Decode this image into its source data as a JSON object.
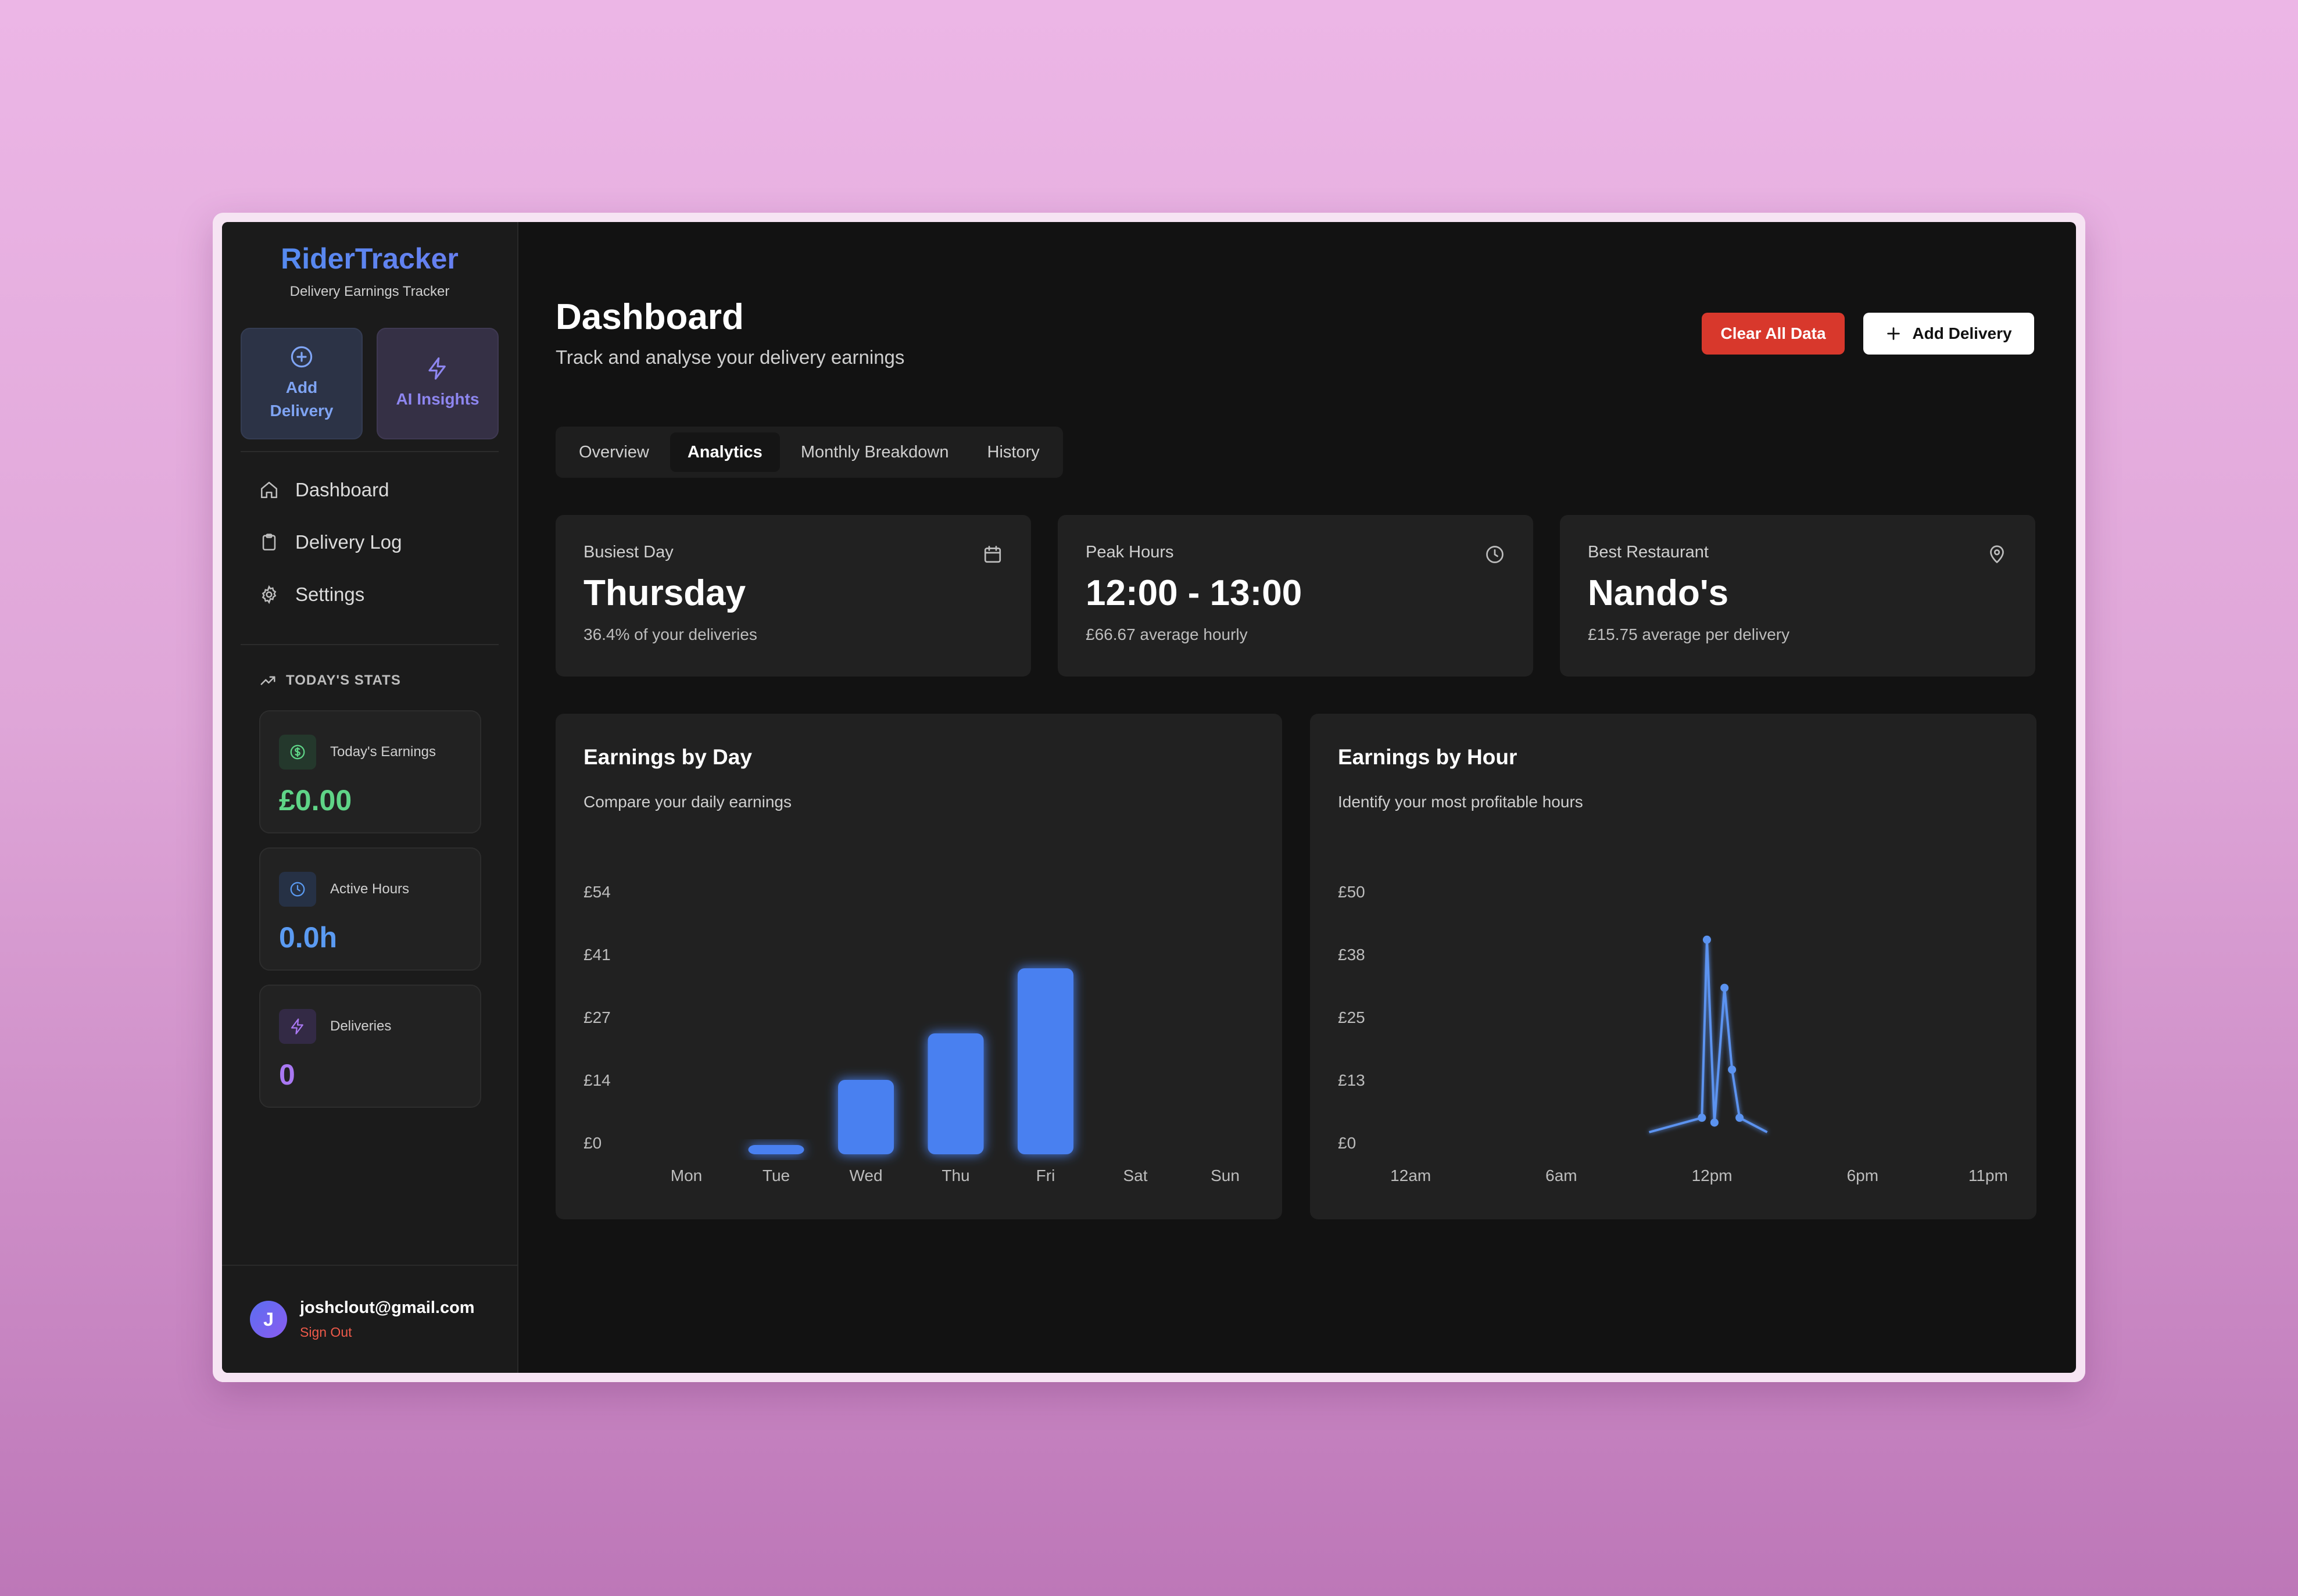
{
  "brand": {
    "title": "RiderTracker",
    "subtitle": "Delivery Earnings Tracker"
  },
  "quick_actions": [
    {
      "label": "Add Delivery",
      "icon": "plus-circle-icon"
    },
    {
      "label": "AI Insights",
      "icon": "lightning-icon"
    }
  ],
  "nav": [
    {
      "label": "Dashboard",
      "icon": "home-icon"
    },
    {
      "label": "Delivery Log",
      "icon": "clipboard-icon"
    },
    {
      "label": "Settings",
      "icon": "gear-icon"
    }
  ],
  "today": {
    "heading": "TODAY'S STATS",
    "earnings": {
      "label": "Today's Earnings",
      "value": "£0.00",
      "color": "#5fd487"
    },
    "hours": {
      "label": "Active Hours",
      "value": "0.0h",
      "color": "#5b9bf2"
    },
    "deliveries": {
      "label": "Deliveries",
      "value": "0",
      "color": "#a978f2"
    }
  },
  "user": {
    "initial": "J",
    "email": "joshclout@gmail.com",
    "sign_out": "Sign Out"
  },
  "header": {
    "title": "Dashboard",
    "subtitle": "Track and analyse your delivery earnings",
    "clear_label": "Clear All Data",
    "add_label": "Add Delivery"
  },
  "tabs": [
    {
      "label": "Overview",
      "active": false
    },
    {
      "label": "Analytics",
      "active": true
    },
    {
      "label": "Monthly Breakdown",
      "active": false
    },
    {
      "label": "History",
      "active": false
    }
  ],
  "insights": [
    {
      "label": "Busiest Day",
      "value": "Thursday",
      "note": "36.4% of your deliveries",
      "icon": "calendar-icon"
    },
    {
      "label": "Peak Hours",
      "value": "12:00 - 13:00",
      "note": "£66.67 average hourly",
      "icon": "clock-icon"
    },
    {
      "label": "Best Restaurant",
      "value": "Nando's",
      "note": "£15.75 average per delivery",
      "icon": "map-pin-icon"
    }
  ],
  "chart_data": [
    {
      "type": "bar",
      "title": "Earnings by Day",
      "subtitle": "Compare your daily earnings",
      "categories": [
        "Mon",
        "Tue",
        "Wed",
        "Thu",
        "Fri",
        "Sat",
        "Sun"
      ],
      "values": [
        0,
        2,
        16,
        26,
        40,
        0,
        0
      ],
      "yticks": [
        "£0",
        "£14",
        "£27",
        "£41",
        "£54"
      ],
      "ylim": [
        0,
        54
      ],
      "color": "#4a80f0",
      "grid": false
    },
    {
      "type": "line",
      "title": "Earnings by Hour",
      "subtitle": "Identify your most profitable hours",
      "x": [
        0,
        1,
        2,
        3,
        4,
        5,
        6,
        7,
        8,
        9,
        10,
        11,
        12,
        13,
        14,
        15,
        16,
        17,
        18,
        19,
        20,
        21,
        22,
        23
      ],
      "xlabels": [
        {
          "label": "12am",
          "x": 0
        },
        {
          "label": "6am",
          "x": 6
        },
        {
          "label": "12pm",
          "x": 12
        },
        {
          "label": "6pm",
          "x": 18
        },
        {
          "label": "11pm",
          "x": 23
        }
      ],
      "xlim": [
        -1,
        24
      ],
      "series": [
        {
          "values": [
            0,
            0,
            0,
            0,
            0,
            0,
            0,
            0,
            0,
            0,
            0,
            0,
            0,
            0,
            0,
            0,
            0,
            0,
            0,
            0,
            0,
            0,
            0,
            0
          ]
        }
      ],
      "points": [
        {
          "x": 11.6,
          "y": 3
        },
        {
          "x": 11.8,
          "y": 40
        },
        {
          "x": 12.1,
          "y": 2
        },
        {
          "x": 12.5,
          "y": 30
        },
        {
          "x": 12.8,
          "y": 13
        },
        {
          "x": 13.1,
          "y": 3
        }
      ],
      "line_range": [
        9.5,
        14.2
      ],
      "yticks": [
        "£0",
        "£13",
        "£25",
        "£38",
        "£50"
      ],
      "ylim": [
        0,
        50
      ],
      "color": "#5b93f0",
      "grid": false
    }
  ]
}
